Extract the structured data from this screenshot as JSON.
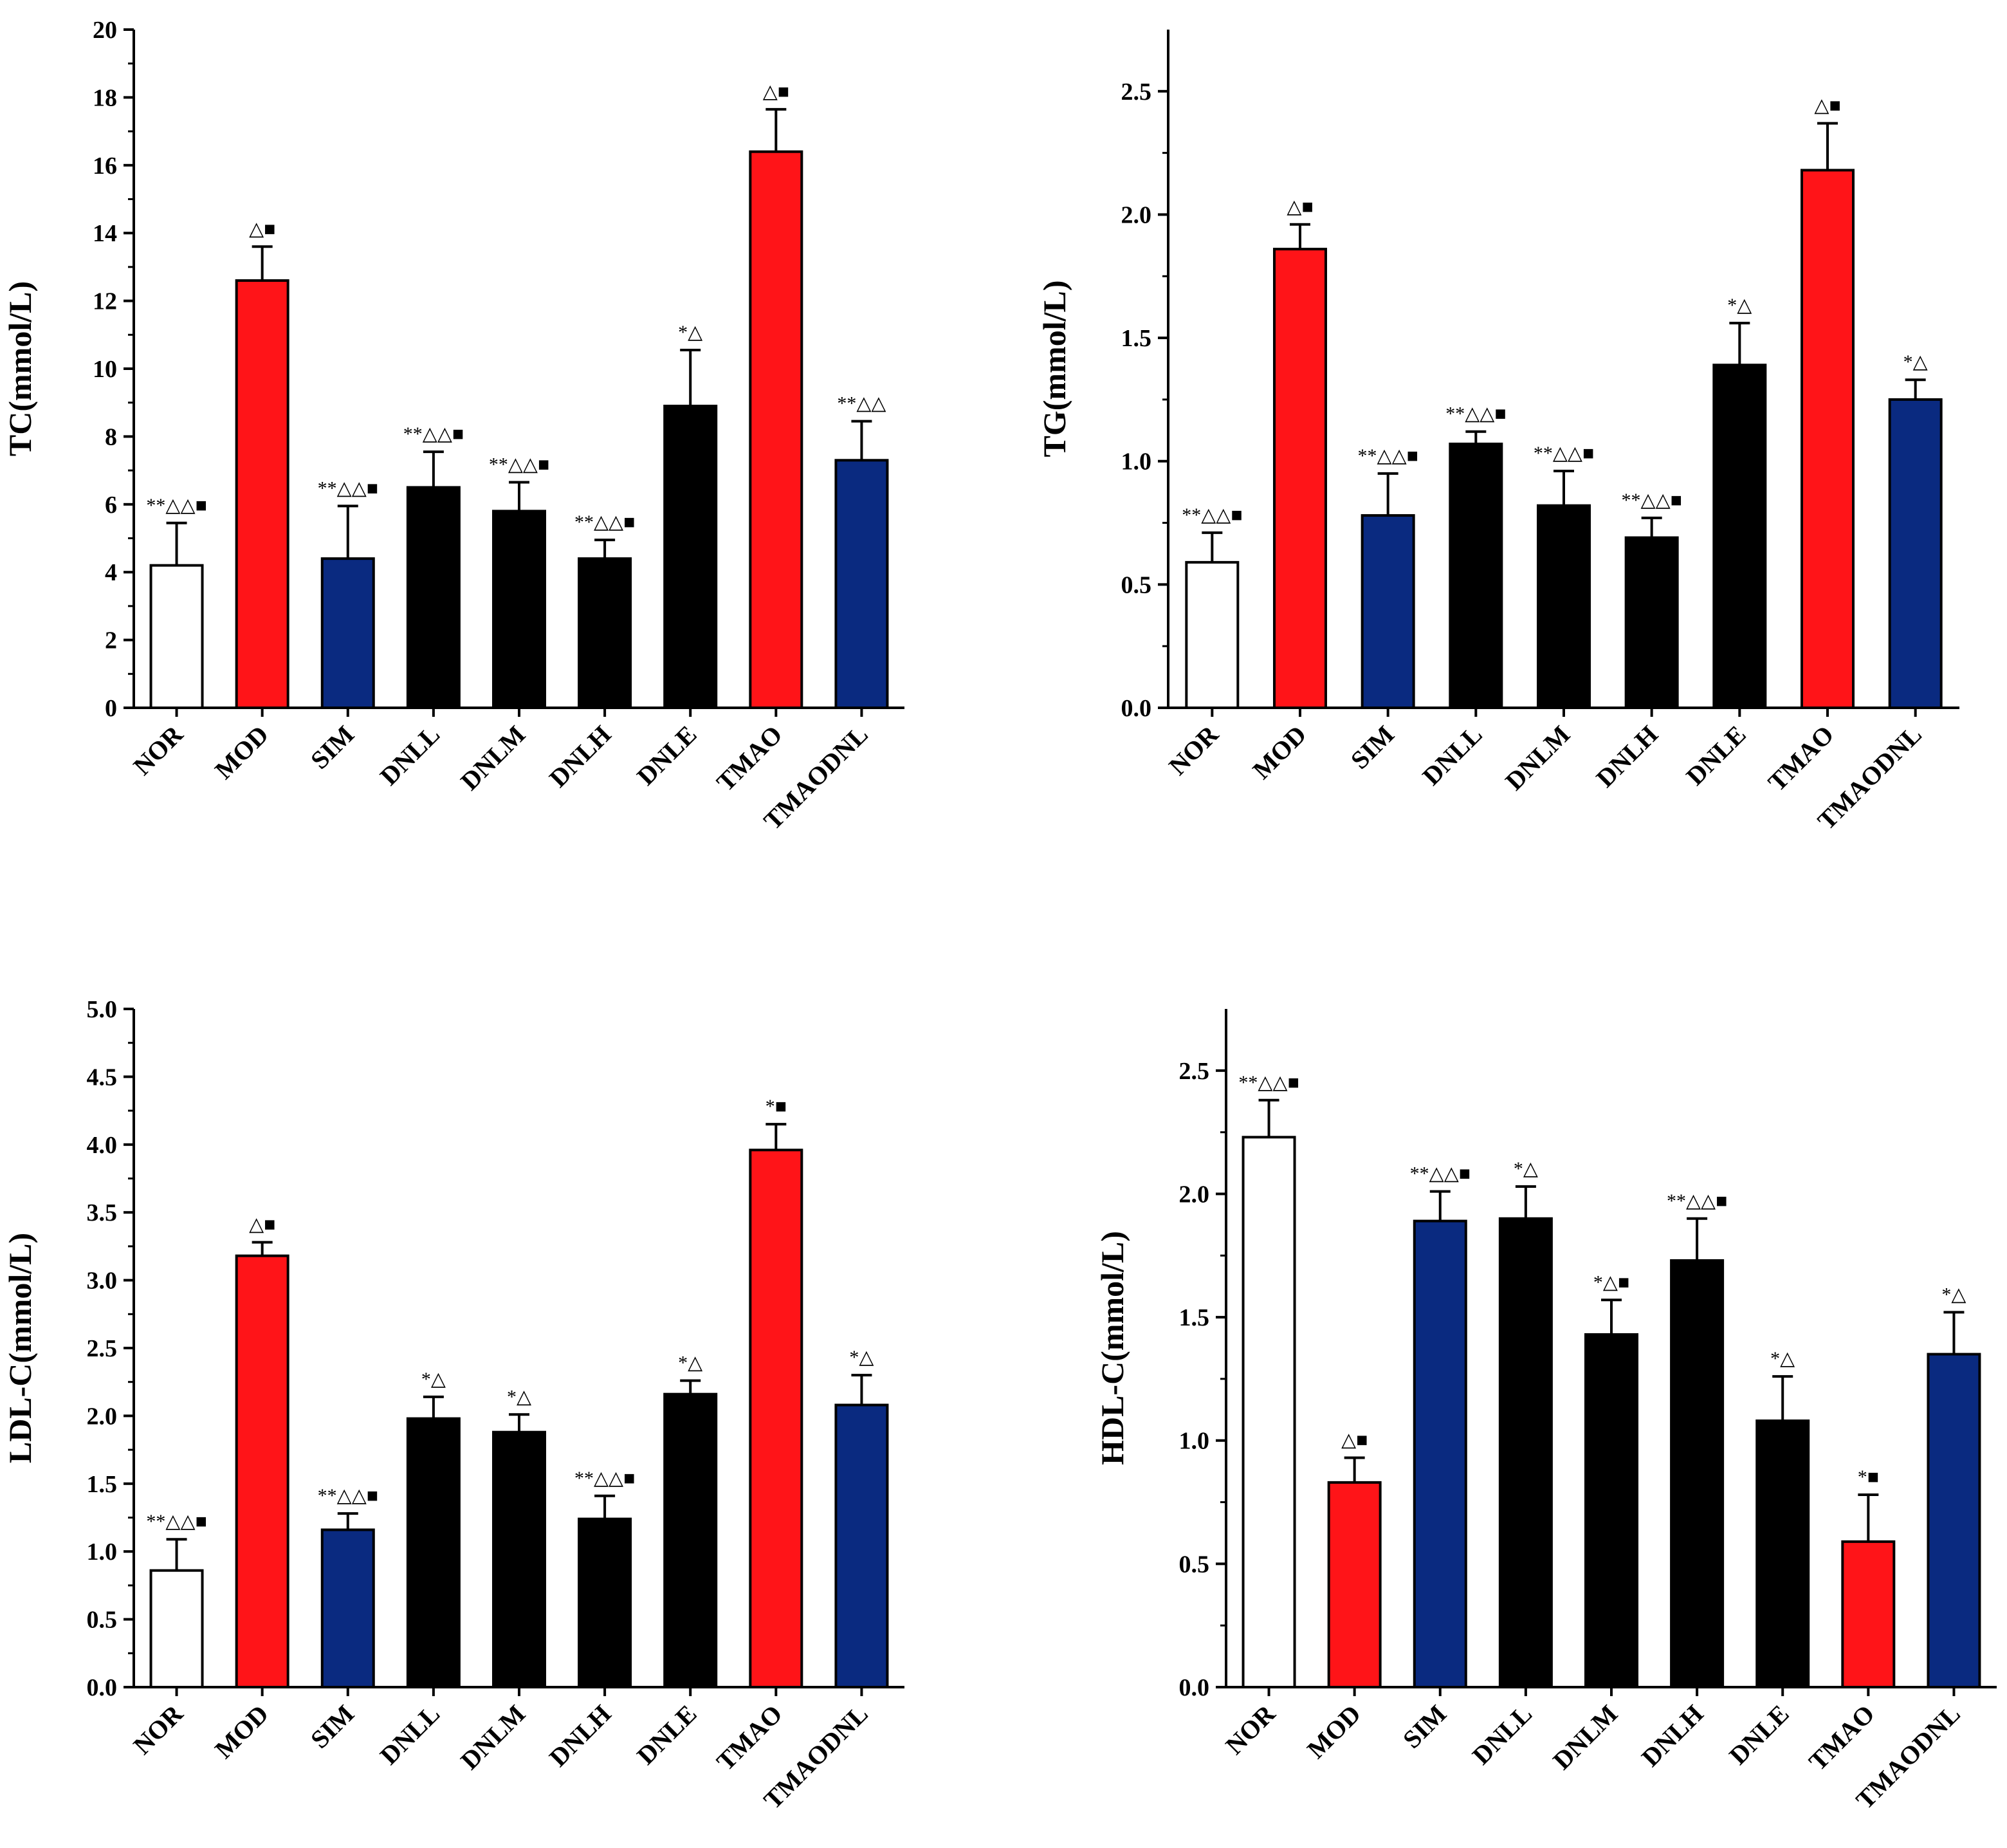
{
  "colors": {
    "NOR": "#ffffff",
    "MOD": "#ff1418",
    "SIM": "#0a2a80",
    "DN": "#000000",
    "TMAO": "#ff1418",
    "TMAODNL": "#0a2a80"
  },
  "chart_data": [
    {
      "type": "bar",
      "categories": [
        "NOR",
        "MOD",
        "SIM",
        "DNLL",
        "DNLM",
        "DNLH",
        "DNLE",
        "TMAO",
        "TMAODNL"
      ],
      "values": [
        4.2,
        12.6,
        4.4,
        6.5,
        5.8,
        4.4,
        8.9,
        16.4,
        7.3
      ],
      "errors": [
        1.25,
        1.0,
        1.55,
        1.05,
        0.85,
        0.55,
        1.65,
        1.25,
        1.15
      ],
      "annotations": [
        "**△△■",
        "△■",
        "**△△■",
        "**△△■",
        "**△△■",
        "**△△■",
        "*△",
        "△■",
        "**△△"
      ],
      "ylabel": "TC(mmol/L)",
      "ylim": [
        0,
        20
      ],
      "yticks": [
        "0",
        "2",
        "4",
        "6",
        "8",
        "10",
        "12",
        "14",
        "16",
        "18",
        "20"
      ]
    },
    {
      "type": "bar",
      "categories": [
        "NOR",
        "MOD",
        "SIM",
        "DNLL",
        "DNLM",
        "DNLH",
        "DNLE",
        "TMAO",
        "TMAODNL"
      ],
      "values": [
        0.59,
        1.86,
        0.78,
        1.07,
        0.82,
        0.69,
        1.39,
        2.18,
        1.25
      ],
      "errors": [
        0.12,
        0.1,
        0.17,
        0.05,
        0.14,
        0.08,
        0.17,
        0.19,
        0.08
      ],
      "annotations": [
        "**△△■",
        "△■",
        "**△△■",
        "**△△■",
        "**△△■",
        "**△△■",
        "*△",
        "△■",
        "*△"
      ],
      "ylabel": "TG(mmol/L)",
      "ylim": [
        0,
        2.75
      ],
      "yticks": [
        "0.0",
        "0.5",
        "1.0",
        "1.5",
        "2.0",
        "2.5"
      ]
    },
    {
      "type": "bar",
      "categories": [
        "NOR",
        "MOD",
        "SIM",
        "DNLL",
        "DNLM",
        "DNLH",
        "DNLE",
        "TMAO",
        "TMAODNL"
      ],
      "values": [
        0.86,
        3.18,
        1.16,
        1.98,
        1.88,
        1.24,
        2.16,
        3.96,
        2.08
      ],
      "errors": [
        0.23,
        0.1,
        0.12,
        0.16,
        0.13,
        0.17,
        0.1,
        0.19,
        0.22
      ],
      "annotations": [
        "**△△■",
        "△■",
        "**△△■",
        "*△",
        "*△",
        "**△△■",
        "*△",
        "*■",
        "*△"
      ],
      "ylabel": "LDL-C(mmol/L)",
      "ylim": [
        0,
        5.0
      ],
      "yticks": [
        "0.0",
        "0.5",
        "1.0",
        "1.5",
        "2.0",
        "2.5",
        "3.0",
        "3.5",
        "4.0",
        "4.5",
        "5.0"
      ]
    },
    {
      "type": "bar",
      "categories": [
        "NOR",
        "MOD",
        "SIM",
        "DNLL",
        "DNLM",
        "DNLH",
        "DNLE",
        "TMAO",
        "TMAODNL"
      ],
      "values": [
        2.23,
        0.83,
        1.89,
        1.9,
        1.43,
        1.73,
        1.08,
        0.59,
        1.35
      ],
      "errors": [
        0.15,
        0.1,
        0.12,
        0.13,
        0.14,
        0.17,
        0.18,
        0.19,
        0.17
      ],
      "annotations": [
        "**△△■",
        "△■",
        "**△△■",
        "*△",
        "*△■",
        "**△△■",
        "*△",
        "*■",
        "*△"
      ],
      "ylabel": "HDL-C(mmol/L)",
      "ylim": [
        0,
        2.75
      ],
      "yticks": [
        "0.0",
        "0.5",
        "1.0",
        "1.5",
        "2.0",
        "2.5"
      ]
    }
  ]
}
